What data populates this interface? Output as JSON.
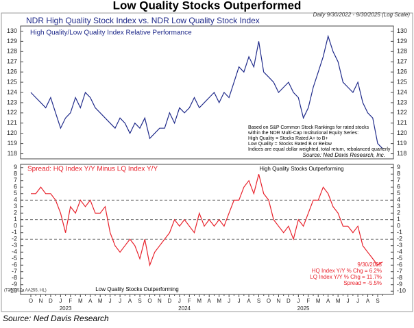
{
  "chart_data": {
    "type": "line",
    "title": "Low Quality Stocks Outperformed",
    "subtitle": "Daily 9/30/2022 - 9/30/2025 (Log Scale)",
    "source": "Source:  Ned Davis Research",
    "code": "(T35035Za AA255, HL)",
    "categories": [
      "O",
      null,
      "N",
      null,
      "D",
      null,
      "J",
      null,
      "F",
      null,
      "M",
      null,
      "A",
      null,
      "M",
      null,
      "J",
      null,
      "J",
      null,
      "A",
      null,
      "S",
      null,
      "O",
      null,
      "N",
      null,
      "D",
      null,
      "J",
      null,
      "F",
      null,
      "M",
      null,
      "A",
      null,
      "M",
      null,
      "J",
      null,
      "J",
      null,
      "A",
      null,
      "S",
      null,
      "O",
      null,
      "N",
      null,
      "D",
      null,
      "J",
      null,
      "F",
      null,
      "M",
      null,
      "A",
      null,
      "M",
      null,
      "J",
      null,
      "J",
      null,
      "A",
      null,
      "S",
      null
    ],
    "years": [
      "2023",
      "2024",
      "2025"
    ],
    "panels": [
      {
        "title": "NDR High Quality Stock Index vs. NDR Low Quality Stock Index",
        "series": [
          {
            "name": "High Quality/Low Quality Index Relative Performance",
            "color": "#1f2a8a",
            "values": [
              124,
              123.5,
              123,
              122.5,
              123.5,
              122,
              120.5,
              121.5,
              122,
              123.5,
              122.5,
              124,
              123.5,
              122.5,
              122,
              121.5,
              121,
              120.5,
              121.5,
              121,
              120,
              121,
              120.5,
              121.5,
              119.5,
              120,
              120.5,
              120.5,
              122,
              121,
              122.5,
              122,
              122.5,
              123.5,
              122.5,
              123,
              123.5,
              124,
              123,
              124,
              123.5,
              125,
              126.5,
              126,
              127.5,
              126.5,
              129,
              126,
              125.5,
              125,
              124,
              124.5,
              125,
              124,
              123.5,
              121.5,
              122.5,
              124.5,
              126,
              127.5,
              129.5,
              128,
              127,
              125,
              124.5,
              124,
              125,
              123,
              122,
              121.5,
              119,
              118.5
            ]
          }
        ],
        "ylim": [
          117.5,
          130.5
        ],
        "yticks": [
          118,
          119,
          120,
          121,
          122,
          123,
          124,
          125,
          126,
          127,
          128,
          129,
          130
        ],
        "notes": [
          "Based on S&P Common Stock Rankings for rated stocks",
          "within the NDR Multi-Cap Institutional Equity Series:",
          "High Quality = Stocks Rated A+ to B+",
          "Low Quality = Stocks Rated B or Below",
          "Indices are equal dollar weighted, total return, rebalanced quarterly"
        ],
        "note_source": "Source: Ned Davis Research, Inc."
      },
      {
        "series": [
          {
            "name": "Spread: HQ Index Y/Y Minus LQ Index Y/Y",
            "color": "#e8202a",
            "values": [
              5,
              5,
              6,
              5,
              5,
              4,
              2,
              -1,
              3,
              2,
              4,
              3,
              4,
              2,
              2,
              3,
              -1,
              -3,
              -4,
              -3,
              -2,
              -3,
              -5,
              -2,
              -6,
              -4,
              -3,
              -2,
              -1,
              1,
              0,
              1,
              0,
              -1,
              2,
              0,
              1,
              0,
              1,
              0,
              2,
              4,
              4,
              6,
              7,
              5,
              8,
              5,
              4,
              1,
              0,
              -1,
              0,
              -2,
              1,
              0,
              2,
              4,
              4,
              6,
              5,
              3,
              2,
              0,
              0,
              -1,
              0,
              -3,
              -4,
              -5,
              -6,
              -5.5
            ]
          }
        ],
        "ylim": [
          -10.5,
          9.5
        ],
        "yticks": [
          9,
          8,
          7,
          6,
          5,
          4,
          3,
          2,
          1,
          0,
          -1,
          -2,
          -3,
          -4,
          -5,
          -6,
          -7,
          -8,
          -9,
          -10
        ],
        "ref_lines": [
          4,
          1,
          -2
        ],
        "top_note": "High Quality Stocks Outperforming",
        "bottom_note": "Low Quality Stocks Outperforming",
        "end_notes": [
          "9/30/2025",
          "HQ Index Y/Y % Chg = 6.2%",
          "LQ Index Y/Y % Chg = 11.7%",
          "Spread = -5.5%"
        ]
      }
    ]
  }
}
